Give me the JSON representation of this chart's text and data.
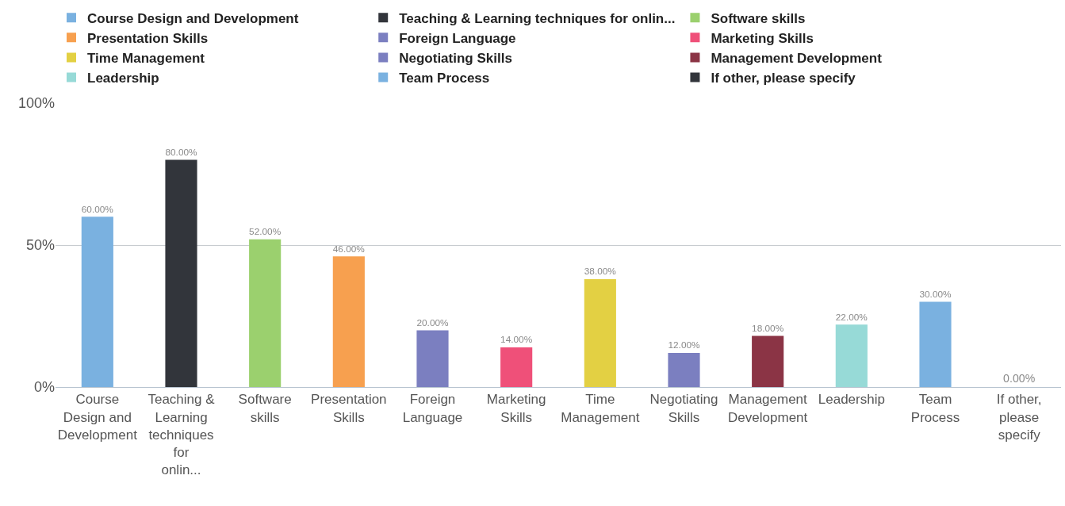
{
  "chart_data": {
    "type": "bar",
    "categories": [
      "Course Design and Development",
      "Teaching & Learning techniques for onlin...",
      "Software skills",
      "Presentation Skills",
      "Foreign Language",
      "Marketing Skills",
      "Time Management",
      "Negotiating Skills",
      "Management Development",
      "Leadership",
      "Team Process",
      "If other, please specify"
    ],
    "series": [
      {
        "name": "Course Design and Development",
        "color": "#7ab1e0",
        "values": [
          60,
          null,
          null,
          null,
          null,
          null,
          null,
          null,
          null,
          null,
          null,
          null
        ],
        "value_labels": [
          "60.00%",
          null,
          null,
          null,
          null,
          null,
          null,
          null,
          null,
          null,
          null,
          null
        ]
      },
      {
        "name": "Teaching & Learning techniques for onlin...",
        "color": "#32353b",
        "values": [
          null,
          80,
          null,
          null,
          null,
          null,
          null,
          null,
          null,
          null,
          null,
          null
        ],
        "value_labels": [
          null,
          "80.00%",
          null,
          null,
          null,
          null,
          null,
          null,
          null,
          null,
          null,
          null
        ]
      },
      {
        "name": "Software skills",
        "color": "#9bd06e",
        "values": [
          null,
          null,
          52,
          null,
          null,
          null,
          null,
          null,
          null,
          null,
          null,
          null
        ],
        "value_labels": [
          null,
          null,
          "52.00%",
          null,
          null,
          null,
          null,
          null,
          null,
          null,
          null,
          null
        ]
      },
      {
        "name": "Presentation Skills",
        "color": "#f7a04f",
        "values": [
          null,
          null,
          null,
          46,
          null,
          null,
          null,
          null,
          null,
          null,
          null,
          null
        ],
        "value_labels": [
          null,
          null,
          null,
          "46.00%",
          null,
          null,
          null,
          null,
          null,
          null,
          null,
          null
        ]
      },
      {
        "name": "Foreign Language",
        "color": "#7b7fc0",
        "values": [
          null,
          null,
          null,
          null,
          20,
          null,
          null,
          null,
          null,
          null,
          null,
          null
        ],
        "value_labels": [
          null,
          null,
          null,
          null,
          "20.00%",
          null,
          null,
          null,
          null,
          null,
          null,
          null
        ]
      },
      {
        "name": "Marketing Skills",
        "color": "#ef5079",
        "values": [
          null,
          null,
          null,
          null,
          null,
          14,
          null,
          null,
          null,
          null,
          null,
          null
        ],
        "value_labels": [
          null,
          null,
          null,
          null,
          null,
          "14.00%",
          null,
          null,
          null,
          null,
          null,
          null
        ]
      },
      {
        "name": "Time Management",
        "color": "#e3d043",
        "values": [
          null,
          null,
          null,
          null,
          null,
          null,
          38,
          null,
          null,
          null,
          null,
          null
        ],
        "value_labels": [
          null,
          null,
          null,
          null,
          null,
          null,
          "38.00%",
          null,
          null,
          null,
          null,
          null
        ]
      },
      {
        "name": "Negotiating Skills",
        "color": "#7b7fc0",
        "values": [
          null,
          null,
          null,
          null,
          null,
          null,
          null,
          12,
          null,
          null,
          null,
          null
        ],
        "value_labels": [
          null,
          null,
          null,
          null,
          null,
          null,
          null,
          "12.00%",
          null,
          null,
          null,
          null
        ]
      },
      {
        "name": "Management Development",
        "color": "#8b3445",
        "values": [
          null,
          null,
          null,
          null,
          null,
          null,
          null,
          null,
          18,
          null,
          null,
          null
        ],
        "value_labels": [
          null,
          null,
          null,
          null,
          null,
          null,
          null,
          null,
          "18.00%",
          null,
          null,
          null
        ]
      },
      {
        "name": "Leadership",
        "color": "#97dad7",
        "values": [
          null,
          null,
          null,
          null,
          null,
          null,
          null,
          null,
          null,
          22,
          null,
          null
        ],
        "value_labels": [
          null,
          null,
          null,
          null,
          null,
          null,
          null,
          null,
          null,
          "22.00%",
          null,
          null
        ]
      },
      {
        "name": "Team Process",
        "color": "#7ab1e0",
        "values": [
          null,
          null,
          null,
          null,
          null,
          null,
          null,
          null,
          null,
          null,
          30,
          null
        ],
        "value_labels": [
          null,
          null,
          null,
          null,
          null,
          null,
          null,
          null,
          null,
          null,
          "30.00%",
          null
        ]
      },
      {
        "name": "If other, please specify",
        "color": "#32353b",
        "values": [
          null,
          null,
          null,
          null,
          null,
          null,
          null,
          null,
          null,
          null,
          null,
          0
        ],
        "value_labels": [
          null,
          null,
          null,
          null,
          null,
          null,
          null,
          null,
          null,
          null,
          null,
          "0.00%"
        ]
      }
    ],
    "ylim": [
      0,
      100
    ],
    "yticks": [
      {
        "value": 0,
        "label": "0%"
      },
      {
        "value": 50,
        "label": "50%"
      },
      {
        "value": 100,
        "label": "100%"
      }
    ],
    "grid": "y",
    "legend": "top"
  }
}
